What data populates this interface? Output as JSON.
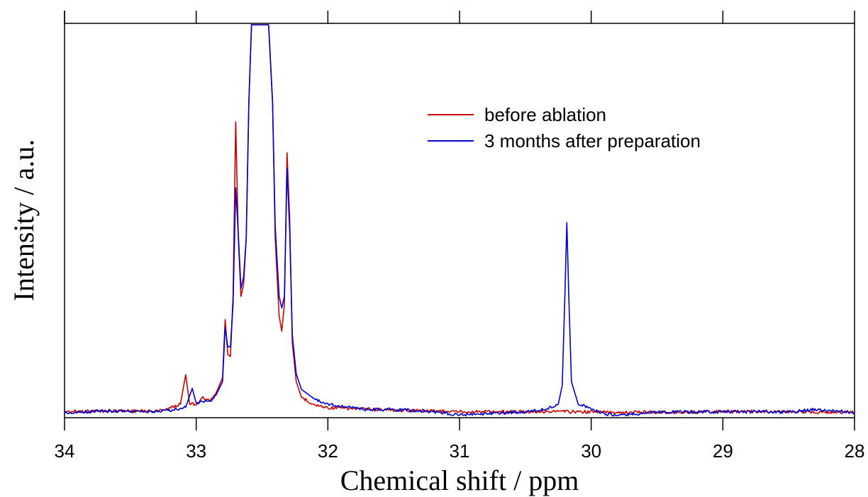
{
  "chart_data": {
    "type": "line",
    "xlabel": "Chemical shift / ppm",
    "ylabel": "Intensity / a.u.",
    "xlim": [
      34,
      28
    ],
    "x_reversed": true,
    "ylim": [
      0,
      100
    ],
    "x_ticks": [
      34,
      33,
      32,
      31,
      30,
      29,
      28
    ],
    "x_tick_labels": [
      "34",
      "33",
      "32",
      "31",
      "30",
      "29",
      "28"
    ],
    "y_ticks_labeled": false,
    "grid": false,
    "legend_position": "top-right",
    "series": [
      {
        "name": "before ablation",
        "color": "#cc0000",
        "points": [
          [
            34.0,
            0.3
          ],
          [
            33.6,
            0.5
          ],
          [
            33.3,
            0.4
          ],
          [
            33.2,
            1.2
          ],
          [
            33.12,
            2.2
          ],
          [
            33.08,
            9.8
          ],
          [
            33.05,
            2.5
          ],
          [
            33.0,
            2.2
          ],
          [
            32.95,
            3.8
          ],
          [
            32.9,
            3.0
          ],
          [
            32.85,
            5.0
          ],
          [
            32.8,
            9.0
          ],
          [
            32.78,
            24.0
          ],
          [
            32.76,
            15.0
          ],
          [
            32.74,
            14.5
          ],
          [
            32.72,
            30.0
          ],
          [
            32.7,
            75.0
          ],
          [
            32.68,
            45.0
          ],
          [
            32.66,
            30.0
          ],
          [
            32.64,
            33.0
          ],
          [
            32.62,
            45.0
          ],
          [
            32.6,
            80.0
          ],
          [
            32.58,
            100.0
          ],
          [
            32.45,
            100.0
          ],
          [
            32.42,
            80.0
          ],
          [
            32.4,
            45.0
          ],
          [
            32.37,
            25.0
          ],
          [
            32.35,
            21.0
          ],
          [
            32.33,
            28.0
          ],
          [
            32.31,
            67.0
          ],
          [
            32.29,
            50.0
          ],
          [
            32.27,
            18.0
          ],
          [
            32.24,
            8.0
          ],
          [
            32.2,
            4.0
          ],
          [
            32.1,
            2.0
          ],
          [
            32.0,
            1.3
          ],
          [
            31.5,
            0.7
          ],
          [
            31.0,
            0.3
          ],
          [
            30.5,
            0.3
          ],
          [
            30.2,
            0.3
          ],
          [
            30.0,
            0.2
          ],
          [
            29.5,
            0.1
          ],
          [
            29.0,
            0.3
          ],
          [
            28.5,
            0.3
          ],
          [
            28.0,
            0.1
          ]
        ]
      },
      {
        "name": "3 months after preparation",
        "color": "#0000cc",
        "points": [
          [
            34.0,
            0.1
          ],
          [
            33.6,
            0.5
          ],
          [
            33.3,
            0.3
          ],
          [
            33.15,
            0.9
          ],
          [
            33.08,
            1.4
          ],
          [
            33.03,
            6.3
          ],
          [
            33.0,
            2.4
          ],
          [
            32.95,
            2.9
          ],
          [
            32.9,
            2.8
          ],
          [
            32.85,
            4.5
          ],
          [
            32.8,
            8.0
          ],
          [
            32.78,
            22.0
          ],
          [
            32.76,
            17.0
          ],
          [
            32.74,
            17.0
          ],
          [
            32.72,
            28.0
          ],
          [
            32.7,
            58.0
          ],
          [
            32.68,
            46.0
          ],
          [
            32.66,
            32.0
          ],
          [
            32.64,
            35.0
          ],
          [
            32.62,
            45.0
          ],
          [
            32.6,
            80.0
          ],
          [
            32.58,
            100.0
          ],
          [
            32.45,
            100.0
          ],
          [
            32.42,
            80.0
          ],
          [
            32.4,
            48.0
          ],
          [
            32.37,
            30.0
          ],
          [
            32.35,
            27.0
          ],
          [
            32.33,
            30.0
          ],
          [
            32.31,
            63.0
          ],
          [
            32.29,
            47.0
          ],
          [
            32.27,
            20.0
          ],
          [
            32.24,
            10.0
          ],
          [
            32.2,
            6.0
          ],
          [
            32.1,
            3.5
          ],
          [
            32.0,
            2.3
          ],
          [
            31.9,
            1.7
          ],
          [
            31.7,
            0.8
          ],
          [
            31.5,
            0.8
          ],
          [
            31.2,
            0.3
          ],
          [
            31.0,
            -0.5
          ],
          [
            30.5,
            0.2
          ],
          [
            30.35,
            1.0
          ],
          [
            30.3,
            1.5
          ],
          [
            30.25,
            2.2
          ],
          [
            30.22,
            7.0
          ],
          [
            30.2,
            30.0
          ],
          [
            30.185,
            49.0
          ],
          [
            30.17,
            30.0
          ],
          [
            30.15,
            8.0
          ],
          [
            30.1,
            2.4
          ],
          [
            30.0,
            1.0
          ],
          [
            29.9,
            -0.3
          ],
          [
            29.8,
            -0.6
          ],
          [
            29.5,
            0.1
          ],
          [
            29.0,
            0.3
          ],
          [
            28.5,
            0.2
          ],
          [
            28.3,
            0.9
          ],
          [
            28.0,
            0.1
          ]
        ]
      }
    ]
  }
}
